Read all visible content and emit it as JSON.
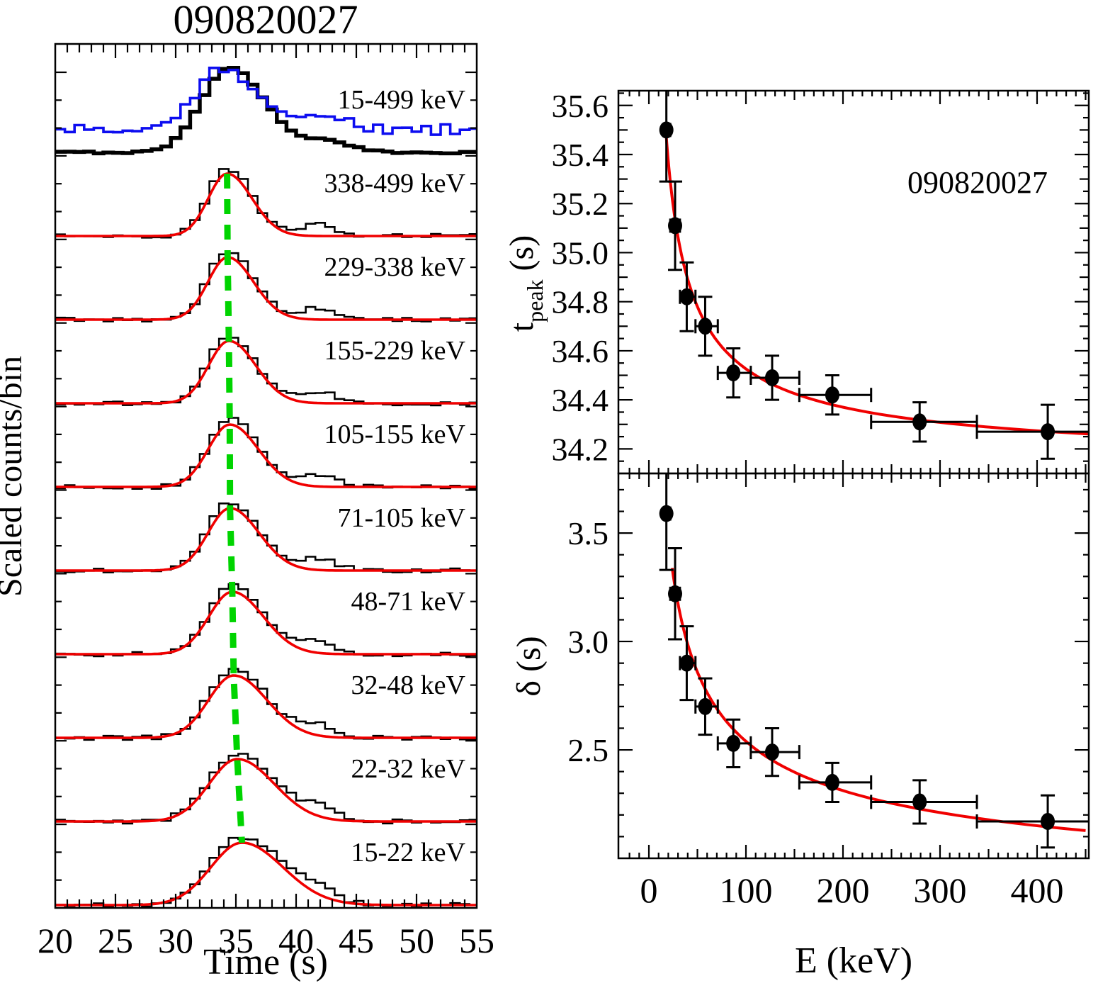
{
  "figure": {
    "title": "090820027",
    "colors": {
      "histogram": "#000000",
      "wide_band_overlay": "#0d0df0",
      "fit_curve": "#f00000",
      "peak_track": "#00d400",
      "points": "#000000",
      "background": "#ffffff"
    }
  },
  "chart_data": [
    {
      "type": "line",
      "panel": "stacked-light-curves",
      "title": "090820027",
      "xlabel": "Time (s)",
      "ylabel": "Scaled counts/bin",
      "xlim": [
        20,
        55
      ],
      "x_major_ticks": [
        20,
        25,
        30,
        35,
        40,
        45,
        50,
        55
      ],
      "x_minor_step_s": 1,
      "bin_width_s": 0.8,
      "grid": false,
      "bands": [
        {
          "label": "15-499 keV",
          "range_keV": [
            15,
            499
          ],
          "peak_time_s": 34.4,
          "sigma_rise_s": 2.3,
          "sigma_fall_s": 3.0,
          "style": "thick-black-with-blue-overlay"
        },
        {
          "label": "338-499 keV",
          "range_keV": [
            338,
            499
          ],
          "peak_time_s": 34.27,
          "sigma_rise_s": 1.56,
          "sigma_fall_s": 2.06
        },
        {
          "label": "229-338 keV",
          "range_keV": [
            229,
            338
          ],
          "peak_time_s": 34.31,
          "sigma_rise_s": 1.63,
          "sigma_fall_s": 2.15
        },
        {
          "label": "155-229 keV",
          "range_keV": [
            155,
            229
          ],
          "peak_time_s": 34.42,
          "sigma_rise_s": 1.69,
          "sigma_fall_s": 2.23
        },
        {
          "label": "105-155 keV",
          "range_keV": [
            105,
            155
          ],
          "peak_time_s": 34.49,
          "sigma_rise_s": 1.79,
          "sigma_fall_s": 2.37
        },
        {
          "label": "71-105 keV",
          "range_keV": [
            71,
            105
          ],
          "peak_time_s": 34.51,
          "sigma_rise_s": 1.82,
          "sigma_fall_s": 2.4
        },
        {
          "label": "48-71 keV",
          "range_keV": [
            48,
            71
          ],
          "peak_time_s": 34.7,
          "sigma_rise_s": 1.94,
          "sigma_fall_s": 2.57
        },
        {
          "label": "32-48 keV",
          "range_keV": [
            32,
            48
          ],
          "peak_time_s": 34.82,
          "sigma_rise_s": 2.09,
          "sigma_fall_s": 2.76
        },
        {
          "label": "22-32 keV",
          "range_keV": [
            22,
            32
          ],
          "peak_time_s": 35.11,
          "sigma_rise_s": 2.32,
          "sigma_fall_s": 3.06
        },
        {
          "label": "15-22 keV",
          "range_keV": [
            15,
            22
          ],
          "peak_time_s": 35.5,
          "sigma_rise_s": 2.58,
          "sigma_fall_s": 3.41
        }
      ],
      "secondary_bump": {
        "time_s": 41.8,
        "rel_amplitude": 0.17,
        "sigma_s": 1.5
      },
      "overlay": {
        "band": "15-499 keV (noisy wide-band)",
        "peak_time_s": 33.85,
        "sigma_rise_s": 2.05,
        "sigma_fall_s": 3.1
      },
      "peak_track": {
        "color": "#00d400",
        "style": "dashed line through fitted pulse peaks"
      }
    },
    {
      "type": "scatter",
      "panel": "t_peak-vs-E",
      "annotation": "090820027",
      "ylabel_parts": {
        "main": "t",
        "sub": "peak",
        "rest": " (s)"
      },
      "x_keV": [
        18,
        27,
        39,
        58,
        87,
        127,
        189,
        279,
        411
      ],
      "x_lo_keV": [
        15,
        22,
        32,
        48,
        71,
        105,
        155,
        229,
        338
      ],
      "x_hi_keV": [
        22,
        32,
        48,
        71,
        105,
        155,
        229,
        338,
        499
      ],
      "y_s": [
        35.5,
        35.11,
        34.82,
        34.7,
        34.51,
        34.49,
        34.42,
        34.31,
        34.27
      ],
      "y_err_s": [
        0.21,
        0.18,
        0.14,
        0.12,
        0.1,
        0.09,
        0.08,
        0.08,
        0.11
      ],
      "fit": {
        "form": "t0 + A*E^-alpha",
        "t0": 34.12,
        "A": 10.2,
        "alpha": 0.7,
        "E_range": [
          17.5,
          455
        ]
      },
      "xlim": [
        -31.4,
        453.3
      ],
      "ylim": [
        34.1,
        35.66
      ],
      "y_major_ticks": [
        34.2,
        34.4,
        34.6,
        34.8,
        35.0,
        35.2,
        35.4,
        35.6
      ],
      "grid": false,
      "legend": null
    },
    {
      "type": "scatter",
      "panel": "delta-vs-E",
      "xlabel": "E (keV)",
      "ylabel": "δ (s)",
      "x_keV": [
        18,
        27,
        39,
        58,
        87,
        127,
        189,
        279,
        411
      ],
      "x_lo_keV": [
        15,
        22,
        32,
        48,
        71,
        105,
        155,
        229,
        338
      ],
      "x_hi_keV": [
        22,
        32,
        48,
        71,
        105,
        155,
        229,
        338,
        499
      ],
      "y_s": [
        3.59,
        3.22,
        2.9,
        2.7,
        2.53,
        2.49,
        2.35,
        2.26,
        2.17
      ],
      "y_err_s": [
        0.26,
        0.21,
        0.17,
        0.13,
        0.11,
        0.11,
        0.09,
        0.1,
        0.12
      ],
      "fit": {
        "form": "c + B*E^-beta",
        "c": 1.75,
        "B": 7.54,
        "beta": 0.49,
        "E_range": [
          24,
          450
        ]
      },
      "xlim": [
        -31.4,
        453.3
      ],
      "ylim": [
        2.0,
        3.775
      ],
      "x_major_ticks": [
        0,
        100,
        200,
        300,
        400
      ],
      "x_minor_step_keV": 10,
      "y_major_ticks": [
        2.5,
        3.0,
        3.5
      ],
      "grid": false,
      "legend": null
    }
  ]
}
